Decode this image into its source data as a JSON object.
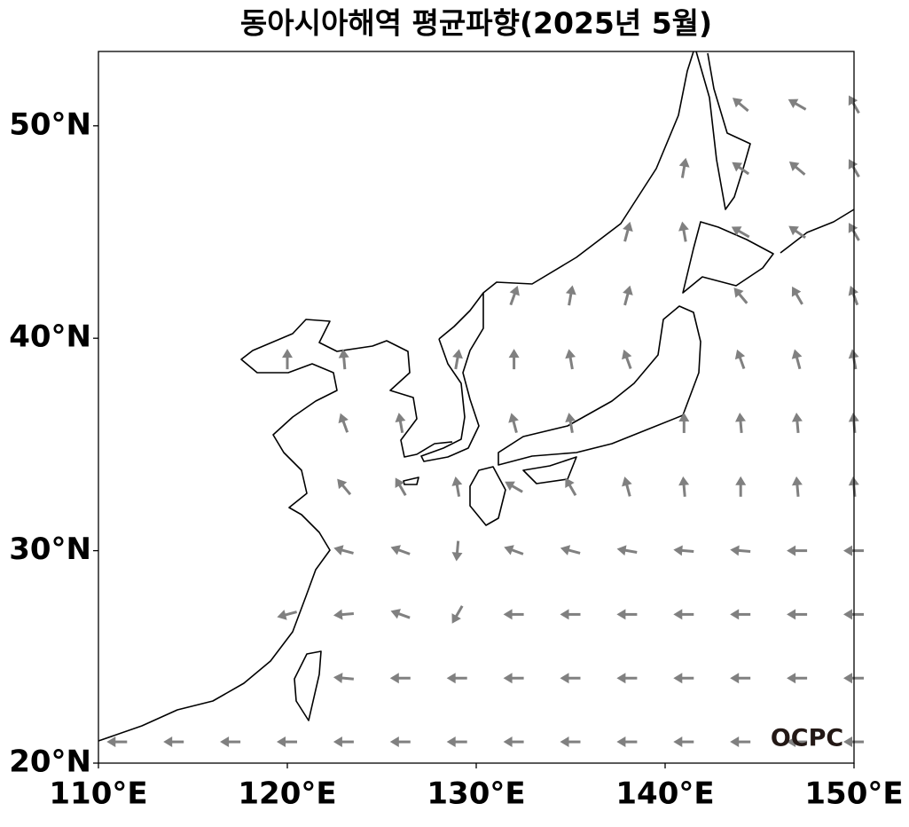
{
  "map": {
    "title": "동아시아해역 평균파향(2025년 5월)",
    "watermark": "OCPC",
    "xlim": [
      110,
      150
    ],
    "ylim": [
      20,
      53.5
    ],
    "xticks": [
      {
        "value": 110,
        "label": "110°E"
      },
      {
        "value": 120,
        "label": "120°E"
      },
      {
        "value": 130,
        "label": "130°E"
      },
      {
        "value": 140,
        "label": "140°E"
      },
      {
        "value": 150,
        "label": "150°E"
      }
    ],
    "yticks": [
      {
        "value": 20,
        "label": "20°N"
      },
      {
        "value": 30,
        "label": "30°N"
      },
      {
        "value": 40,
        "label": "40°N"
      },
      {
        "value": 50,
        "label": "50°N"
      }
    ],
    "arrow_color": "#808080",
    "lons": [
      111,
      114,
      117,
      120,
      123,
      126,
      129,
      132,
      135,
      138,
      141,
      144,
      147,
      150
    ],
    "lats": [
      21,
      24,
      27,
      30,
      33,
      36,
      39,
      42,
      45,
      48,
      51
    ],
    "directions": [
      [
        270,
        270,
        270,
        270,
        270,
        270,
        270,
        270,
        270,
        270,
        270,
        270,
        270,
        270
      ],
      [
        null,
        null,
        null,
        null,
        275,
        270,
        270,
        270,
        270,
        270,
        270,
        270,
        270,
        270
      ],
      [
        null,
        null,
        null,
        255,
        265,
        290,
        210,
        270,
        270,
        270,
        270,
        270,
        270,
        270
      ],
      [
        null,
        null,
        null,
        null,
        285,
        290,
        185,
        290,
        285,
        280,
        275,
        275,
        270,
        270
      ],
      [
        null,
        null,
        null,
        null,
        320,
        330,
        350,
        300,
        330,
        345,
        355,
        0,
        355,
        355
      ],
      [
        null,
        null,
        null,
        null,
        340,
        350,
        null,
        345,
        350,
        null,
        0,
        355,
        355,
        355
      ],
      [
        null,
        null,
        null,
        0,
        355,
        null,
        10,
        0,
        350,
        340,
        null,
        340,
        345,
        350
      ],
      [
        null,
        null,
        null,
        null,
        null,
        null,
        null,
        20,
        10,
        15,
        null,
        320,
        330,
        340
      ],
      [
        null,
        null,
        null,
        null,
        null,
        null,
        null,
        null,
        null,
        15,
        350,
        300,
        305,
        330
      ],
      [
        null,
        null,
        null,
        null,
        null,
        null,
        null,
        null,
        null,
        null,
        10,
        305,
        310,
        330
      ],
      [
        null,
        null,
        null,
        null,
        null,
        null,
        null,
        null,
        null,
        null,
        null,
        310,
        300,
        330
      ]
    ]
  }
}
